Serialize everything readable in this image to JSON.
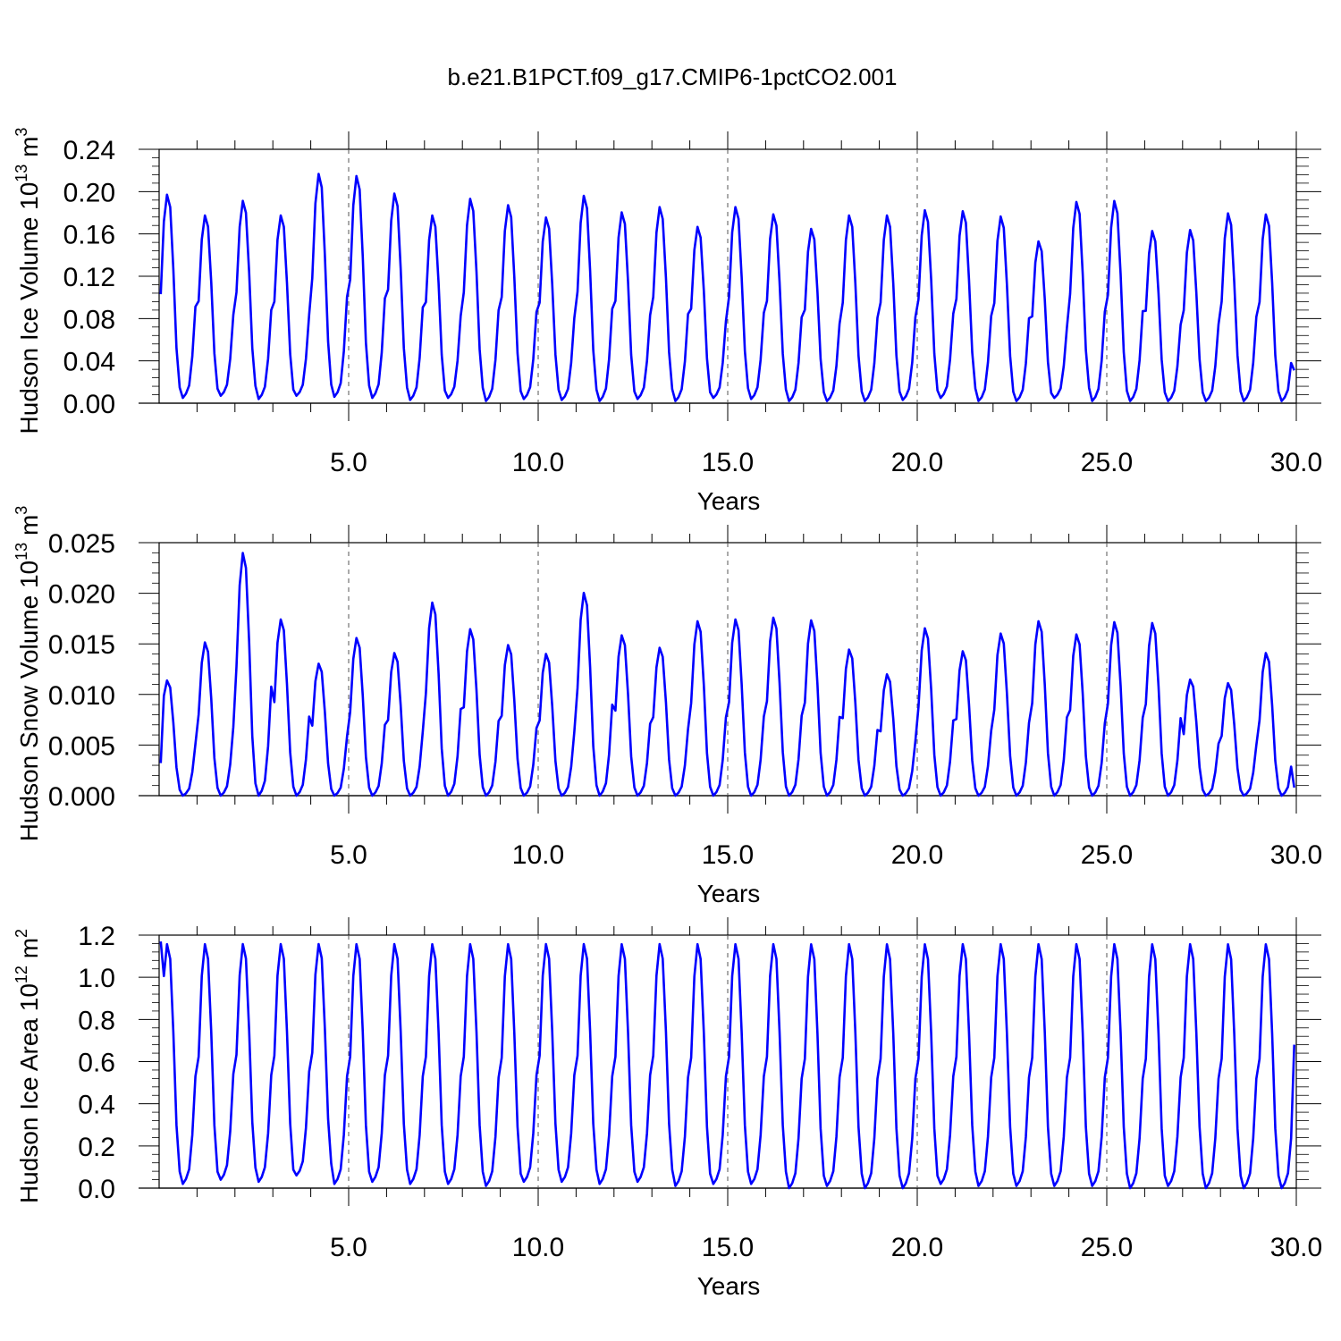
{
  "title": "b.e21.B1PCT.f09_g17.CMIP6-1pctCO2.001",
  "colors": {
    "series": "#0000ff",
    "axis": "#000000",
    "ref_line": "#555555"
  },
  "chart_data": [
    {
      "type": "line",
      "xlabel": "Years",
      "ylabel_parts": [
        "Hudson Ice Volume 10",
        "13",
        " m",
        "3"
      ],
      "xlim": [
        0.0,
        30.0
      ],
      "ylim": [
        0.0,
        0.24
      ],
      "x_ticks": [
        "5.0",
        "10.0",
        "15.0",
        "20.0",
        "25.0",
        "30.0"
      ],
      "y_ticks": [
        "0.00",
        "0.04",
        "0.08",
        "0.12",
        "0.16",
        "0.20",
        "0.24"
      ],
      "reference_lines_x": [
        5,
        10,
        15,
        20,
        25
      ],
      "series": [
        {
          "x_start": 0.0417,
          "x_step": 0.0833,
          "annual_peaks": [
            0.201,
            0.181,
            0.195,
            0.181,
            0.221,
            0.219,
            0.202,
            0.181,
            0.197,
            0.191,
            0.179,
            0.2,
            0.184,
            0.189,
            0.17,
            0.189,
            0.182,
            0.168,
            0.181,
            0.181,
            0.186,
            0.185,
            0.18,
            0.156,
            0.194,
            0.195,
            0.166,
            0.167,
            0.183,
            0.182
          ],
          "annual_minima": [
            0.005,
            0.005,
            0.007,
            0.004,
            0.007,
            0.006,
            0.005,
            0.003,
            0.005,
            0.002,
            0.004,
            0.003,
            0.002,
            0.004,
            0.002,
            0.005,
            0.004,
            0.002,
            0.002,
            0.002,
            0.003,
            0.005,
            0.002,
            0.002,
            0.005,
            0.002,
            0.002,
            0.002,
            0.002,
            0.002
          ],
          "start_value": 0.103,
          "end_value": 0.031
        }
      ]
    },
    {
      "type": "line",
      "xlabel": "Years",
      "ylabel_parts": [
        "Hudson Snow Volume 10",
        "13",
        " m",
        "3"
      ],
      "xlim": [
        0.0,
        30.0
      ],
      "ylim": [
        0.0,
        0.028
      ],
      "x_ticks": [
        "5.0",
        "10.0",
        "15.0",
        "20.0",
        "25.0",
        "30.0"
      ],
      "y_ticks": [
        "0.000",
        "0.005",
        "0.010",
        "0.015",
        "0.020",
        "0.025"
      ],
      "reference_lines_x": [
        5,
        10,
        15,
        20,
        25
      ],
      "series": [
        {
          "x_start": 0.0417,
          "x_step": 0.0833,
          "annual_peaks": [
            0.013,
            0.0173,
            0.0274,
            0.0199,
            0.0149,
            0.0178,
            0.0161,
            0.0218,
            0.0188,
            0.017,
            0.016,
            0.0229,
            0.0181,
            0.0167,
            0.0197,
            0.0199,
            0.0201,
            0.0198,
            0.0165,
            0.0137,
            0.0189,
            0.0163,
            0.0183,
            0.0197,
            0.0182,
            0.0196,
            0.0195,
            0.0131,
            0.0127,
            0.0161
          ],
          "annual_minima": [
            0.0,
            0.0,
            0.0,
            0.0,
            0.0,
            0.0,
            0.0,
            0.0,
            0.0,
            0.0,
            0.0,
            0.0,
            0.0,
            0.0,
            0.0,
            0.0,
            0.0,
            0.0,
            0.0,
            0.0,
            0.0,
            0.0,
            0.0,
            0.0,
            0.0,
            0.0,
            0.0,
            0.0,
            0.0,
            0.0
          ],
          "start_value": 0.0036,
          "end_value": 0.0009
        }
      ]
    },
    {
      "type": "line",
      "xlabel": "Years",
      "ylabel_parts": [
        "Hudson Ice Area 10",
        "12",
        " m",
        "2"
      ],
      "xlim": [
        0.0,
        30.0
      ],
      "ylim": [
        0.0,
        1.2
      ],
      "x_ticks": [
        "5.0",
        "10.0",
        "15.0",
        "20.0",
        "25.0",
        "30.0"
      ],
      "y_ticks": [
        "0.0",
        "0.2",
        "0.4",
        "0.6",
        "0.8",
        "1.0",
        "1.2"
      ],
      "reference_lines_x": [
        5,
        10,
        15,
        20,
        25
      ],
      "series": [
        {
          "x_start": 0.0417,
          "x_step": 0.0833,
          "annual_peaks": [
            1.18,
            1.18,
            1.18,
            1.18,
            1.18,
            1.18,
            1.18,
            1.18,
            1.18,
            1.18,
            1.18,
            1.18,
            1.18,
            1.18,
            1.18,
            1.18,
            1.18,
            1.18,
            1.18,
            1.18,
            1.18,
            1.18,
            1.18,
            1.18,
            1.18,
            1.18,
            1.18,
            1.18,
            1.18,
            1.18
          ],
          "annual_minima": [
            0.02,
            0.02,
            0.04,
            0.03,
            0.06,
            0.02,
            0.03,
            0.02,
            0.02,
            0.01,
            0.03,
            0.03,
            0.02,
            0.03,
            0.01,
            0.02,
            0.02,
            0.0,
            0.01,
            0.0,
            0.0,
            0.02,
            0.01,
            0.01,
            0.01,
            0.01,
            0.0,
            0.01,
            0.0,
            0.0
          ],
          "start_value": 1.17,
          "end_value": 0.68
        }
      ]
    }
  ]
}
